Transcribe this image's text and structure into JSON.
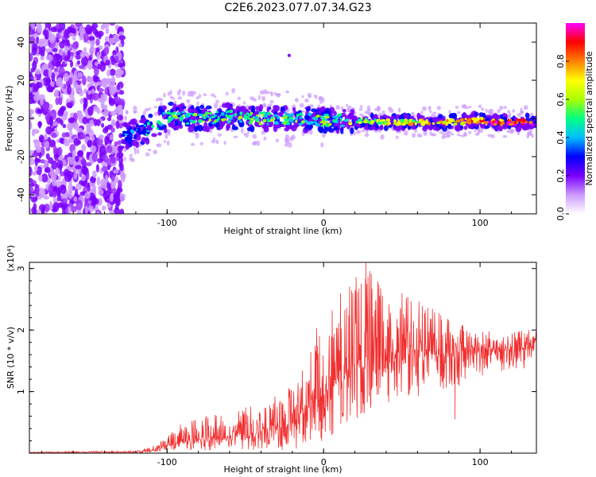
{
  "title": "C2E6.2023.077.07.34.G23",
  "chart_data": [
    {
      "type": "heatmap",
      "xlabel": "Height of straight line (km)",
      "ylabel": "Frequency (Hz)",
      "xlim": [
        -188,
        136
      ],
      "ylim": [
        -50,
        50
      ],
      "x_ticks": [
        -100,
        0,
        100
      ],
      "x_tick_labels": [
        "-100",
        "0",
        "100"
      ],
      "y_ticks": [
        -40,
        -20,
        0,
        20,
        40
      ],
      "y_tick_labels": [
        "-40",
        "-20",
        "0",
        "20",
        "40"
      ],
      "colorbar": {
        "label": "Normalized spectral amplitude",
        "range": [
          0,
          1
        ],
        "ticks": [
          0,
          0.2,
          0.4,
          0.6,
          0.8
        ],
        "tick_labels": [
          "0.0",
          "0.2",
          "0.4",
          "0.6",
          "0.8"
        ],
        "colors": [
          "#ffffff",
          "#cc99ff",
          "#7a00ff",
          "#0000ff",
          "#00bfff",
          "#00ff80",
          "#aaff00",
          "#ffff00",
          "#ff8000",
          "#ff0000",
          "#ff00ff"
        ]
      },
      "noise_region_x": [
        -188,
        -128
      ],
      "signal_track": {
        "x": [
          -130,
          -110,
          -100,
          -80,
          -60,
          -40,
          -20,
          0,
          20,
          40,
          60,
          80,
          100,
          110,
          120,
          136
        ],
        "freq": [
          -10,
          -5,
          1,
          0,
          1,
          0,
          0,
          -1,
          -1,
          -2,
          -2,
          -2,
          -1,
          -2,
          -2,
          -2
        ],
        "amplitude": [
          0.25,
          0.35,
          0.45,
          0.45,
          0.5,
          0.5,
          0.5,
          0.5,
          0.55,
          0.6,
          0.65,
          0.7,
          0.8,
          0.85,
          0.9,
          0.95
        ]
      },
      "isolated_point": {
        "x": -22,
        "freq": 33
      }
    },
    {
      "type": "line",
      "xlabel": "Height of straight line (km)",
      "ylabel": "SNR (10 * v/v)",
      "y_multiplier_label": "(x10⁴)",
      "color": "#f03030",
      "xlim": [
        -188,
        136
      ],
      "ylim": [
        0,
        3.1
      ],
      "x_ticks": [
        -100,
        0,
        100
      ],
      "x_tick_labels": [
        "-100",
        "0",
        "100"
      ],
      "y_ticks": [
        1,
        2,
        3
      ],
      "y_tick_labels": [
        "1",
        "2",
        "3"
      ],
      "envelope": {
        "x": [
          -188,
          -120,
          -110,
          -100,
          -90,
          -80,
          -60,
          -40,
          -20,
          -10,
          0,
          10,
          20,
          25,
          30,
          40,
          60,
          80,
          100,
          120,
          136
        ],
        "mean": [
          0.01,
          0.02,
          0.05,
          0.12,
          0.2,
          0.22,
          0.28,
          0.33,
          0.5,
          0.75,
          0.95,
          1.2,
          1.45,
          1.55,
          1.55,
          1.6,
          1.6,
          1.62,
          1.68,
          1.7,
          1.72
        ],
        "max": [
          0.02,
          0.04,
          0.1,
          0.28,
          0.5,
          0.6,
          0.7,
          0.8,
          1.1,
          1.5,
          2.5,
          2.7,
          2.9,
          3.05,
          2.95,
          2.7,
          2.5,
          2.2,
          2.0,
          2.0,
          2.0
        ],
        "min": [
          0.0,
          0.0,
          0.01,
          0.02,
          0.05,
          0.05,
          0.05,
          0.05,
          0.05,
          0.1,
          0.2,
          0.3,
          0.55,
          0.6,
          0.7,
          0.8,
          0.9,
          1.0,
          1.2,
          1.35,
          1.4
        ]
      },
      "notable_points": [
        {
          "x": 27,
          "y": 3.1
        },
        {
          "x": 84,
          "y": 0.55
        }
      ]
    }
  ]
}
